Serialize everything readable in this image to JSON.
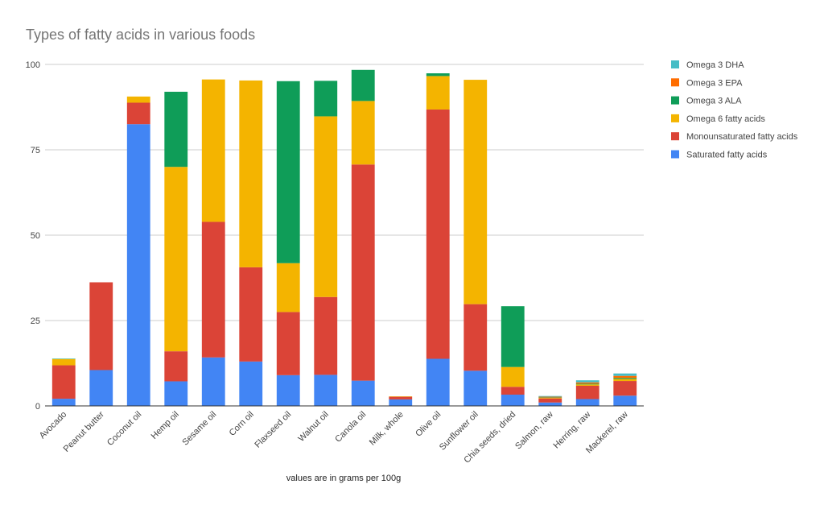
{
  "chart_data": {
    "type": "bar",
    "stacked": true,
    "title": "Types of fatty acids in various foods",
    "xlabel": "values are in grams per 100g",
    "ylabel": "",
    "ylim": [
      0,
      100
    ],
    "yticks": [
      "0",
      "25",
      "50",
      "75",
      "100"
    ],
    "grid": true,
    "legend_position": "right",
    "categories": [
      "Avocado",
      "Peanut butter",
      "Coconut oil",
      "Hemp oil",
      "Sesame oil",
      "Corn oil",
      "Flaxseed oil",
      "Walnut oil",
      "Canola oil",
      "Milk, whole",
      "Olive oil",
      "Sunflower oil",
      "Chia seeds, dried",
      "Salmon, raw",
      "Herring, raw",
      "Mackerel, raw"
    ],
    "series": [
      {
        "name": "Saturated fatty acids",
        "color": "#4285f4",
        "values": [
          2.1,
          10.5,
          82.5,
          7.2,
          14.2,
          13.0,
          9.0,
          9.1,
          7.4,
          1.9,
          13.8,
          10.3,
          3.3,
          1.0,
          2.0,
          3.0
        ]
      },
      {
        "name": "Monounsaturated fatty acids",
        "color": "#db4437",
        "values": [
          9.8,
          25.7,
          6.3,
          8.8,
          39.7,
          27.6,
          18.5,
          22.8,
          63.3,
          0.8,
          73.0,
          19.5,
          2.3,
          1.2,
          3.9,
          4.3
        ]
      },
      {
        "name": "Omega 6 fatty acids",
        "color": "#f4b400",
        "values": [
          1.8,
          0.0,
          1.8,
          54.0,
          41.7,
          54.7,
          14.3,
          52.9,
          18.6,
          0.1,
          9.8,
          65.7,
          5.8,
          0.2,
          0.4,
          0.6
        ]
      },
      {
        "name": "Omega 3 ALA",
        "color": "#0f9d58",
        "values": [
          0.1,
          0.0,
          0.0,
          22.0,
          0.0,
          0.0,
          53.3,
          10.4,
          9.1,
          0.0,
          0.8,
          0.0,
          17.8,
          0.1,
          0.2,
          0.3
        ]
      },
      {
        "name": "Omega 3 EPA",
        "color": "#ff6d00",
        "values": [
          0.0,
          0.0,
          0.0,
          0.0,
          0.0,
          0.0,
          0.0,
          0.0,
          0.0,
          0.0,
          0.0,
          0.0,
          0.0,
          0.2,
          0.4,
          0.6
        ]
      },
      {
        "name": "Omega 3 DHA",
        "color": "#46bdc6",
        "values": [
          0.0,
          0.0,
          0.0,
          0.0,
          0.0,
          0.0,
          0.0,
          0.0,
          0.0,
          0.0,
          0.0,
          0.0,
          0.0,
          0.2,
          0.6,
          0.7
        ]
      }
    ],
    "legend_order": [
      "Omega 3 DHA",
      "Omega 3 EPA",
      "Omega 3 ALA",
      "Omega 6 fatty acids",
      "Monounsaturated fatty acids",
      "Saturated fatty acids"
    ]
  }
}
